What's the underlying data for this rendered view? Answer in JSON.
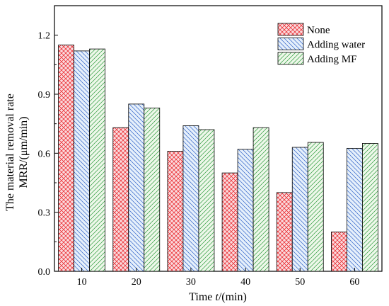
{
  "chart_data": {
    "type": "bar",
    "categories": [
      "10",
      "20",
      "30",
      "40",
      "50",
      "60"
    ],
    "series": [
      {
        "name": "None",
        "values": [
          1.15,
          0.73,
          0.61,
          0.5,
          0.4,
          0.2
        ],
        "color": "#e8191e",
        "fill": "#fadadd",
        "pattern": "crosshatch"
      },
      {
        "name": "Adding water",
        "values": [
          1.12,
          0.85,
          0.74,
          0.62,
          0.63,
          0.625
        ],
        "color": "#2f62c8",
        "fill": "#e6f0fb",
        "pattern": "diagonal-down"
      },
      {
        "name": "Adding MF",
        "values": [
          1.13,
          0.83,
          0.72,
          0.73,
          0.655,
          0.65
        ],
        "color": "#2a9a3a",
        "fill": "#eef8ea",
        "pattern": "diagonal-up"
      }
    ],
    "y_ticks": [
      "0.0",
      "0.3",
      "0.6",
      "0.9",
      "1.2"
    ],
    "ylim": [
      0,
      1.35
    ],
    "xlabel": {
      "prefix": "Time ",
      "italic": "t",
      "suffix": "/(min)"
    },
    "ylabel": {
      "line1": "The material removal rate",
      "line2": "MRR/(μm/min)"
    },
    "legend_position": "top-right",
    "grid": false
  }
}
